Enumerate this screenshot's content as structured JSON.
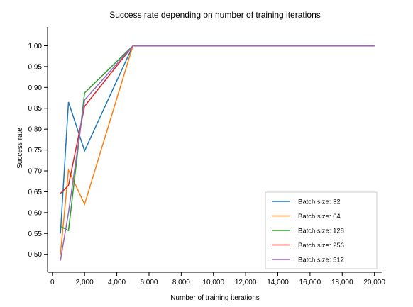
{
  "chart_data": {
    "type": "line",
    "title": "Success rate depending on number of training iterations",
    "xlabel": "Number of training iterations",
    "ylabel": "Success rate",
    "xlim": [
      -300,
      20500
    ],
    "ylim": [
      0.457,
      1.045
    ],
    "x_ticks": [
      0,
      2000,
      4000,
      6000,
      8000,
      10000,
      12000,
      14000,
      16000,
      18000,
      20000
    ],
    "x_tick_labels": [
      "0",
      "2,000",
      "4,000",
      "6,000",
      "8,000",
      "10,000",
      "12,000",
      "14,000",
      "16,000",
      "18,000",
      "20,000"
    ],
    "y_ticks": [
      0.5,
      0.55,
      0.6,
      0.65,
      0.7,
      0.75,
      0.8,
      0.85,
      0.9,
      0.95,
      1.0
    ],
    "y_tick_labels": [
      "0.50",
      "0.55",
      "0.60",
      "0.65",
      "0.70",
      "0.75",
      "0.80",
      "0.85",
      "0.90",
      "0.95",
      "1.00"
    ],
    "grid": false,
    "legend_position": "bottom-right",
    "x": [
      500,
      1000,
      2000,
      5000,
      20000
    ],
    "series": [
      {
        "name": "Batch size: 32",
        "color": "#1f77b4",
        "values": [
          0.55,
          0.865,
          0.748,
          1.0,
          1.0
        ]
      },
      {
        "name": "Batch size: 64",
        "color": "#ff7f0e",
        "values": [
          0.5,
          0.702,
          0.62,
          1.0,
          1.0
        ]
      },
      {
        "name": "Batch size: 128",
        "color": "#2ca02c",
        "values": [
          0.567,
          0.557,
          0.887,
          1.0,
          1.0
        ]
      },
      {
        "name": "Batch size: 256",
        "color": "#d62728",
        "values": [
          0.646,
          0.665,
          0.855,
          1.0,
          1.0
        ]
      },
      {
        "name": "Batch size: 512",
        "color": "#9467bd",
        "values": [
          0.485,
          0.6,
          0.87,
          1.0,
          1.0
        ]
      }
    ]
  }
}
